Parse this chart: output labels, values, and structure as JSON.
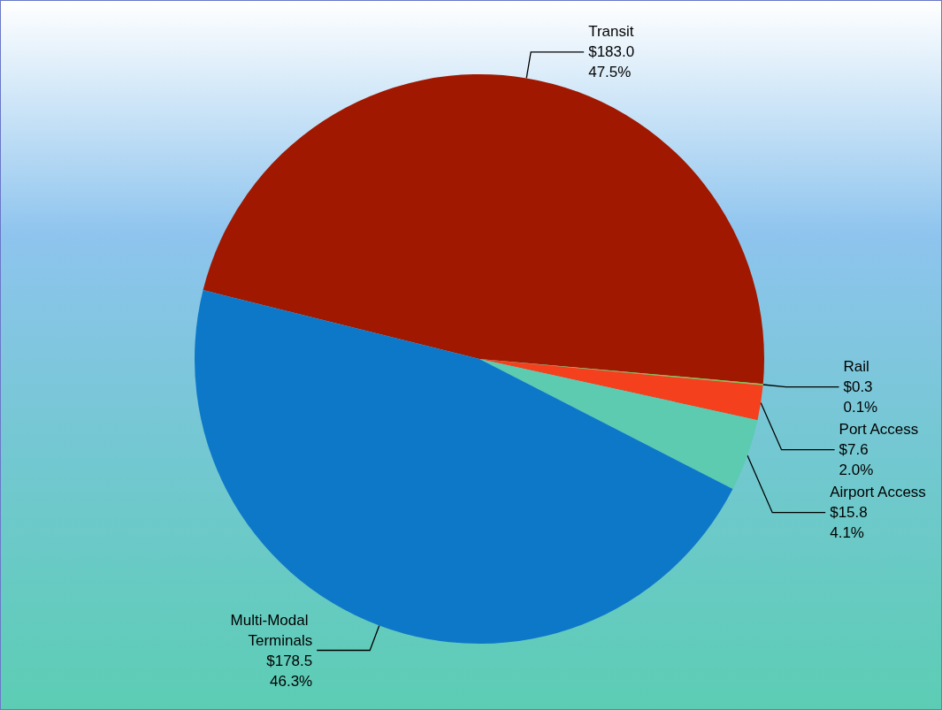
{
  "chart_data": {
    "type": "pie",
    "categories": [
      "Transit",
      "Rail",
      "Port Access",
      "Airport Access",
      "Multi-Modal Terminals"
    ],
    "values": [
      183.0,
      0.3,
      7.6,
      15.8,
      178.5
    ],
    "value_labels": [
      "$183.0\n47.5%",
      "$0.3\n0.1%",
      "$7.6\n2.0%",
      "$15.8\n4.1%",
      "$178.5\n46.3%"
    ],
    "colors": [
      "#a01800",
      "#8bc34a",
      "#f4401c",
      "#5ccbb0",
      "#0e78c8"
    ]
  }
}
